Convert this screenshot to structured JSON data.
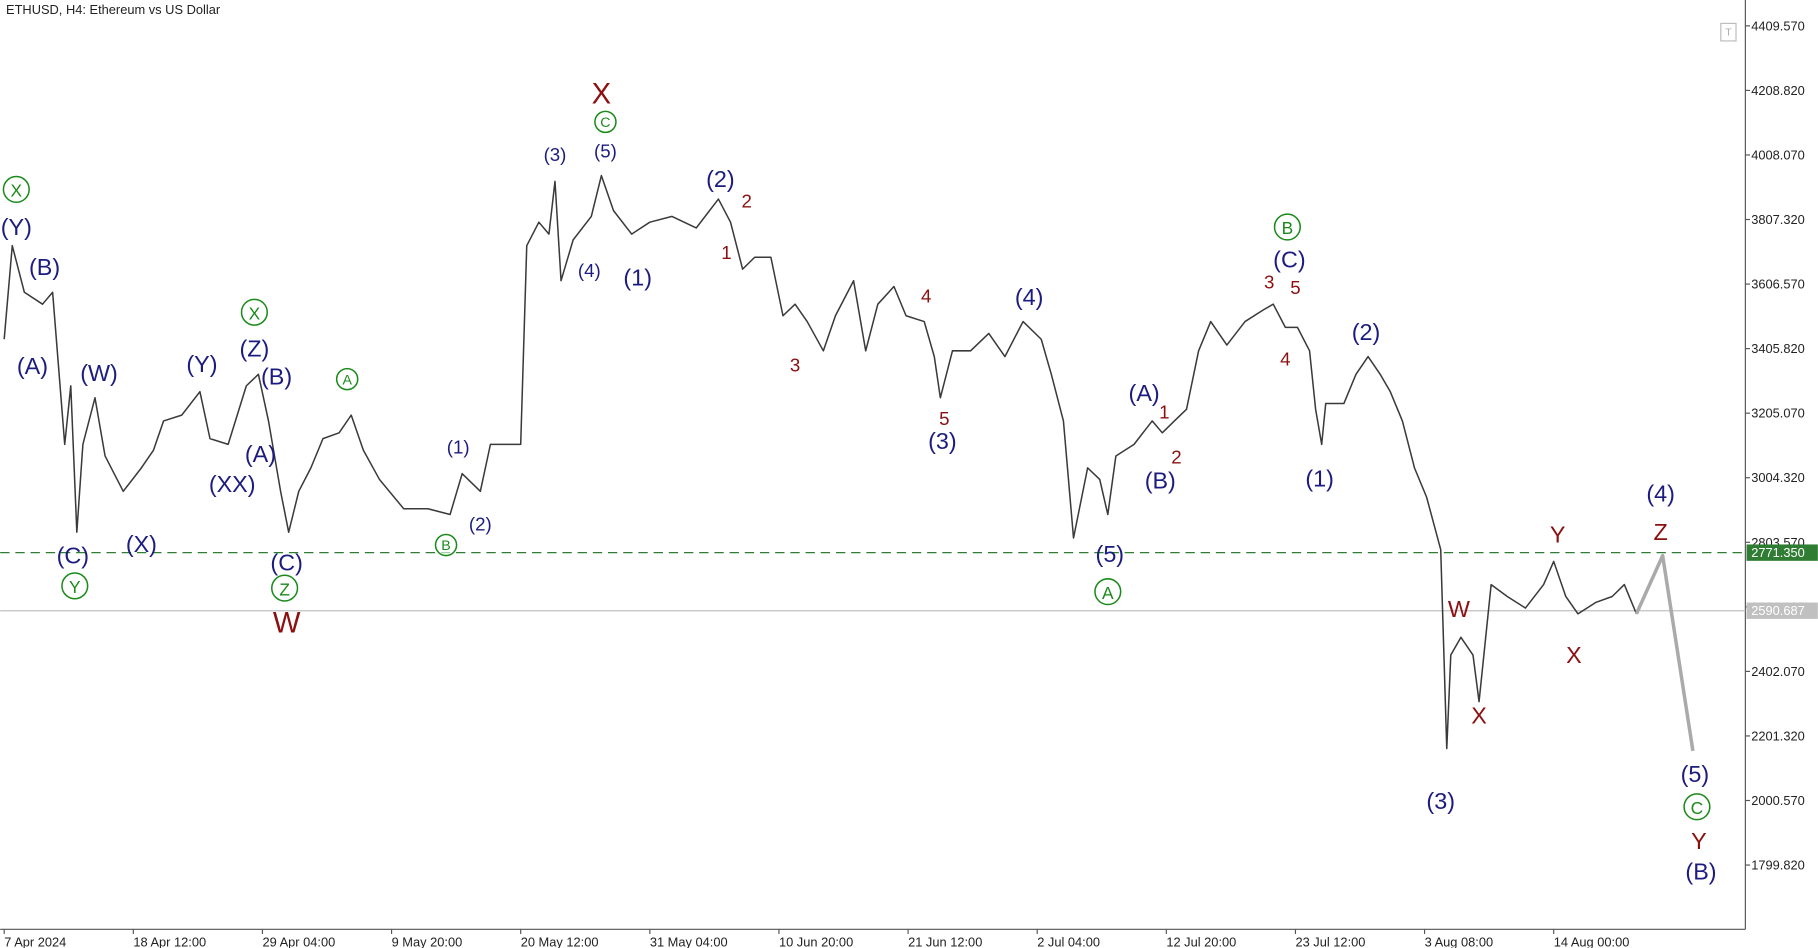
{
  "chart_data": {
    "type": "line",
    "title": "ETHUSD, H4:  Ethereum vs US Dollar",
    "xlim": [
      -2,
      863
    ],
    "ylim": [
      1600,
      4490
    ],
    "xticks": [
      {
        "value": 0,
        "label": "7 Apr 2024"
      },
      {
        "value": 64,
        "label": "18 Apr 12:00"
      },
      {
        "value": 128,
        "label": "29 Apr 04:00"
      },
      {
        "value": 192,
        "label": "9 May 20:00"
      },
      {
        "value": 256,
        "label": "20 May 12:00"
      },
      {
        "value": 320,
        "label": "31 May 04:00"
      },
      {
        "value": 384,
        "label": "10 Jun 20:00"
      },
      {
        "value": 448,
        "label": "21 Jun 12:00"
      },
      {
        "value": 512,
        "label": "2 Jul 04:00"
      },
      {
        "value": 576,
        "label": "12 Jul 20:00"
      },
      {
        "value": 640,
        "label": "23 Jul 12:00"
      },
      {
        "value": 704,
        "label": "3 Aug 08:00"
      },
      {
        "value": 768,
        "label": "14 Aug 00:00"
      }
    ],
    "yticks": [
      {
        "value": 4409.57,
        "label": "4409.570"
      },
      {
        "value": 4208.82,
        "label": "4208.820"
      },
      {
        "value": 4008.07,
        "label": "4008.070"
      },
      {
        "value": 3807.32,
        "label": "3807.320"
      },
      {
        "value": 3606.57,
        "label": "3606.570"
      },
      {
        "value": 3405.82,
        "label": "3405.820"
      },
      {
        "value": 3205.07,
        "label": "3205.070"
      },
      {
        "value": 3004.32,
        "label": "3004.320"
      },
      {
        "value": 2803.57,
        "label": "2803.570"
      },
      {
        "value": 2602.82,
        "label": "2602.820"
      },
      {
        "value": 2402.07,
        "label": "2402.070"
      },
      {
        "value": 2201.32,
        "label": "2201.320"
      },
      {
        "value": 2000.57,
        "label": "2000.570"
      },
      {
        "value": 1799.82,
        "label": "1799.820"
      }
    ],
    "series": [
      {
        "color": "#3a3a3a",
        "width": 1.3,
        "x": [
          0,
          4,
          10,
          19,
          24,
          30,
          33,
          36,
          39,
          45,
          50,
          59,
          68,
          74,
          79,
          88,
          97,
          102,
          111,
          120,
          126,
          131,
          137,
          141,
          146,
          152,
          158,
          166,
          172,
          178,
          186,
          198,
          210,
          221,
          227,
          236,
          241,
          250,
          256,
          259,
          265,
          270,
          273,
          276,
          282,
          291,
          296,
          302,
          311,
          320,
          331,
          343,
          354,
          360,
          366,
          372,
          380,
          386,
          392,
          398,
          406,
          412,
          421,
          427,
          433,
          441,
          447,
          456,
          461,
          464,
          470,
          479,
          488,
          496,
          505,
          514,
          519,
          525,
          530,
          537,
          543,
          547,
          551,
          560,
          569,
          574,
          580,
          586,
          592,
          598,
          606,
          615,
          624,
          629,
          635,
          641,
          647,
          650,
          653,
          655,
          664,
          670,
          676,
          682,
          687,
          693,
          699,
          705,
          712,
          715,
          717,
          722,
          728,
          731,
          737,
          745,
          754,
          763,
          768,
          774,
          780,
          789,
          797,
          803,
          809
        ],
        "values": [
          3435,
          3726,
          3581,
          3544,
          3581,
          3108,
          3290,
          2835,
          3108,
          3253,
          3072,
          2962,
          3035,
          3090,
          3181,
          3199,
          3272,
          3126,
          3108,
          3290,
          3326,
          3181,
          2962,
          2835,
          2962,
          3035,
          3126,
          3144,
          3199,
          3090,
          2999,
          2908,
          2908,
          2890,
          3017,
          2962,
          3108,
          3108,
          3108,
          3726,
          3799,
          3762,
          3926,
          3617,
          3744,
          3817,
          3944,
          3835,
          3762,
          3799,
          3817,
          3781,
          3871,
          3799,
          3653,
          3690,
          3690,
          3508,
          3544,
          3490,
          3399,
          3508,
          3617,
          3399,
          3544,
          3599,
          3508,
          3490,
          3381,
          3253,
          3399,
          3399,
          3453,
          3381,
          3490,
          3435,
          3326,
          3181,
          2817,
          3035,
          2999,
          2890,
          3072,
          3108,
          3181,
          3144,
          3181,
          3217,
          3399,
          3490,
          3417,
          3490,
          3526,
          3544,
          3472,
          3472,
          3399,
          3217,
          3108,
          3235,
          3235,
          3326,
          3381,
          3326,
          3272,
          3181,
          3035,
          2944,
          2781,
          2162,
          2453,
          2508,
          2453,
          2308,
          2672,
          2635,
          2599,
          2672,
          2744,
          2635,
          2581,
          2617,
          2635,
          2672,
          2581
        ]
      },
      {
        "color": "#aaaaaa",
        "width": 3,
        "x": [
          809,
          822,
          837
        ],
        "values": [
          2581,
          2762,
          2155
        ]
      }
    ],
    "price_lines": [
      {
        "value": 2771.35,
        "label": "2771.350",
        "color": "#2e7d32",
        "style": "dashed"
      },
      {
        "value": 2590.687,
        "label": "2590.687",
        "color": "#c0c0c0",
        "style": "solid"
      }
    ],
    "annotations": [
      {
        "text": "X",
        "x": 6,
        "y": 3901,
        "color": "#1a8a1a",
        "size": "medium",
        "circled": true
      },
      {
        "text": "(Y)",
        "x": 6,
        "y": 3788,
        "color": "#1c1c80",
        "size": "medium"
      },
      {
        "text": "(B)",
        "x": 20,
        "y": 3664,
        "color": "#1c1c80",
        "size": "medium"
      },
      {
        "text": "(A)",
        "x": 14,
        "y": 3355,
        "color": "#1c1c80",
        "size": "medium"
      },
      {
        "text": "(W)",
        "x": 47,
        "y": 3333,
        "color": "#1c1c80",
        "size": "medium"
      },
      {
        "text": "(C)",
        "x": 34,
        "y": 2766,
        "color": "#1c1c80",
        "size": "medium"
      },
      {
        "text": "Y",
        "x": 35,
        "y": 2668,
        "color": "#1a8a1a",
        "size": "medium",
        "circled": true
      },
      {
        "text": "(X)",
        "x": 68,
        "y": 2802,
        "color": "#1c1c80",
        "size": "medium"
      },
      {
        "text": "(Y)",
        "x": 98,
        "y": 3362,
        "color": "#1c1c80",
        "size": "medium"
      },
      {
        "text": "X",
        "x": 124,
        "y": 3519,
        "color": "#1a8a1a",
        "size": "medium",
        "circled": true
      },
      {
        "text": "(Z)",
        "x": 124,
        "y": 3410,
        "color": "#1c1c80",
        "size": "medium"
      },
      {
        "text": "(B)",
        "x": 135,
        "y": 3322,
        "color": "#1c1c80",
        "size": "medium"
      },
      {
        "text": "(A)",
        "x": 127,
        "y": 3082,
        "color": "#1c1c80",
        "size": "medium"
      },
      {
        "text": "(XX)",
        "x": 113,
        "y": 2988,
        "color": "#1c1c80",
        "size": "medium"
      },
      {
        "text": "(C)",
        "x": 140,
        "y": 2744,
        "color": "#1c1c80",
        "size": "medium"
      },
      {
        "text": "Z",
        "x": 139,
        "y": 2661,
        "color": "#1a8a1a",
        "size": "medium",
        "circled": true
      },
      {
        "text": "W",
        "x": 140,
        "y": 2555,
        "color": "#8b1010",
        "size": "large"
      },
      {
        "text": "A",
        "x": 170,
        "y": 3311,
        "color": "#1a8a1a",
        "size": "small",
        "circled": true
      },
      {
        "text": "(1)",
        "x": 225,
        "y": 3104,
        "color": "#1c1c80",
        "size": "small"
      },
      {
        "text": "(2)",
        "x": 236,
        "y": 2864,
        "color": "#1c1c80",
        "size": "small"
      },
      {
        "text": "B",
        "x": 219,
        "y": 2795,
        "color": "#1a8a1a",
        "size": "small",
        "circled": true
      },
      {
        "text": "(3)",
        "x": 273,
        "y": 4013,
        "color": "#1c1c80",
        "size": "small"
      },
      {
        "text": "(5)",
        "x": 298,
        "y": 4024,
        "color": "#1c1c80",
        "size": "small"
      },
      {
        "text": "X",
        "x": 296,
        "y": 4199,
        "color": "#8b1010",
        "size": "large"
      },
      {
        "text": "C",
        "x": 298,
        "y": 4111,
        "color": "#1a8a1a",
        "size": "small",
        "circled": true
      },
      {
        "text": "(4)",
        "x": 290,
        "y": 3653,
        "color": "#1c1c80",
        "size": "small"
      },
      {
        "text": "(1)",
        "x": 314,
        "y": 3631,
        "color": "#1c1c80",
        "size": "medium"
      },
      {
        "text": "(2)",
        "x": 355,
        "y": 3937,
        "color": "#1c1c80",
        "size": "medium"
      },
      {
        "text": "2",
        "x": 368,
        "y": 3868,
        "color": "#8b1010",
        "size": "small"
      },
      {
        "text": "1",
        "x": 358,
        "y": 3708,
        "color": "#8b1010",
        "size": "small"
      },
      {
        "text": "3",
        "x": 392,
        "y": 3359,
        "color": "#8b1010",
        "size": "small"
      },
      {
        "text": "4",
        "x": 457,
        "y": 3573,
        "color": "#8b1010",
        "size": "small"
      },
      {
        "text": "5",
        "x": 466,
        "y": 3192,
        "color": "#8b1010",
        "size": "small"
      },
      {
        "text": "(3)",
        "x": 465,
        "y": 3122,
        "color": "#1c1c80",
        "size": "medium"
      },
      {
        "text": "(4)",
        "x": 508,
        "y": 3570,
        "color": "#1c1c80",
        "size": "medium"
      },
      {
        "text": "(A)",
        "x": 565,
        "y": 3272,
        "color": "#1c1c80",
        "size": "medium"
      },
      {
        "text": "1",
        "x": 575,
        "y": 3213,
        "color": "#8b1010",
        "size": "small"
      },
      {
        "text": "2",
        "x": 581,
        "y": 3072,
        "color": "#8b1010",
        "size": "small"
      },
      {
        "text": "(B)",
        "x": 573,
        "y": 2999,
        "color": "#1c1c80",
        "size": "medium"
      },
      {
        "text": "(5)",
        "x": 548,
        "y": 2770,
        "color": "#1c1c80",
        "size": "medium"
      },
      {
        "text": "A",
        "x": 547,
        "y": 2650,
        "color": "#1a8a1a",
        "size": "medium",
        "circled": true
      },
      {
        "text": "B",
        "x": 636,
        "y": 3784,
        "color": "#1a8a1a",
        "size": "medium",
        "circled": true
      },
      {
        "text": "(C)",
        "x": 637,
        "y": 3686,
        "color": "#1c1c80",
        "size": "medium"
      },
      {
        "text": "3",
        "x": 627,
        "y": 3617,
        "color": "#8b1010",
        "size": "small"
      },
      {
        "text": "5",
        "x": 640,
        "y": 3599,
        "color": "#8b1010",
        "size": "small"
      },
      {
        "text": "4",
        "x": 635,
        "y": 3377,
        "color": "#8b1010",
        "size": "small"
      },
      {
        "text": "(2)",
        "x": 675,
        "y": 3461,
        "color": "#1c1c80",
        "size": "medium"
      },
      {
        "text": "(1)",
        "x": 652,
        "y": 3006,
        "color": "#1c1c80",
        "size": "medium"
      },
      {
        "text": "W",
        "x": 721,
        "y": 2599,
        "color": "#8b1010",
        "size": "medium"
      },
      {
        "text": "X",
        "x": 731,
        "y": 2268,
        "color": "#8b1010",
        "size": "medium"
      },
      {
        "text": "(3)",
        "x": 712,
        "y": 2003,
        "color": "#1c1c80",
        "size": "medium"
      },
      {
        "text": "Y",
        "x": 770,
        "y": 2832,
        "color": "#8b1010",
        "size": "medium"
      },
      {
        "text": "X",
        "x": 778,
        "y": 2457,
        "color": "#8b1010",
        "size": "medium"
      },
      {
        "text": "(4)",
        "x": 821,
        "y": 2959,
        "color": "#1c1c80",
        "size": "medium"
      },
      {
        "text": "Z",
        "x": 821,
        "y": 2839,
        "color": "#8b1010",
        "size": "medium"
      },
      {
        "text": "(5)",
        "x": 838,
        "y": 2086,
        "color": "#1c1c80",
        "size": "medium"
      },
      {
        "text": "C",
        "x": 839,
        "y": 1981,
        "color": "#1a8a1a",
        "size": "medium",
        "circled": true
      },
      {
        "text": "Y",
        "x": 840,
        "y": 1879,
        "color": "#8b1010",
        "size": "medium"
      },
      {
        "text": "(B)",
        "x": 841,
        "y": 1784,
        "color": "#1c1c80",
        "size": "medium"
      }
    ]
  }
}
